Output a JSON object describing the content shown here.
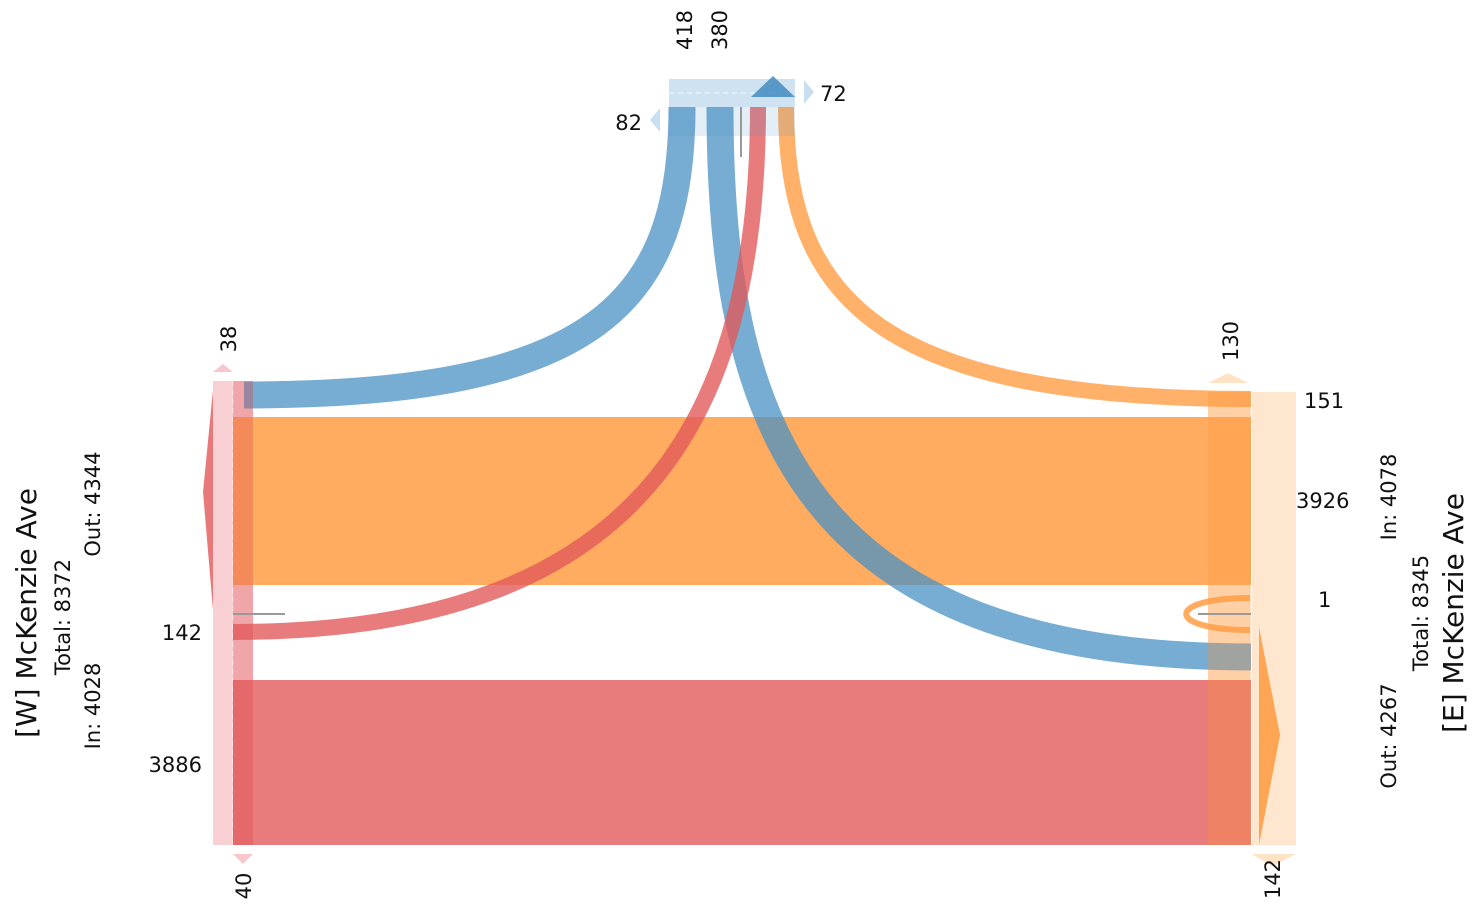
{
  "approaches": {
    "west": {
      "title": "[W] McKenzie Ave",
      "total": "Total: 8372",
      "in": "In: 4028",
      "out": "Out: 4344",
      "movements": {
        "u_turn_top": "38",
        "right": "142",
        "through": "3886",
        "u_turn_bottom": "40"
      }
    },
    "east": {
      "title": "[E] McKenzie Ave",
      "total": "Total: 8345",
      "in": "In: 4078",
      "out": "Out: 4267",
      "movements": {
        "u_turn_top": "130",
        "right": "151",
        "through": "3926",
        "left": "1",
        "u_turn_bottom": "142"
      }
    },
    "north": {
      "movements": {
        "a": "418",
        "b": "380",
        "left_side": "82",
        "right_side": "72"
      }
    }
  },
  "colors": {
    "west": "#e15759",
    "west_light": "#f7c7cb",
    "east": "#ff9d45",
    "east_light": "#ffe3c7",
    "north": "#4a90c4",
    "north_light": "#c9dff0",
    "marker": "#999999"
  }
}
